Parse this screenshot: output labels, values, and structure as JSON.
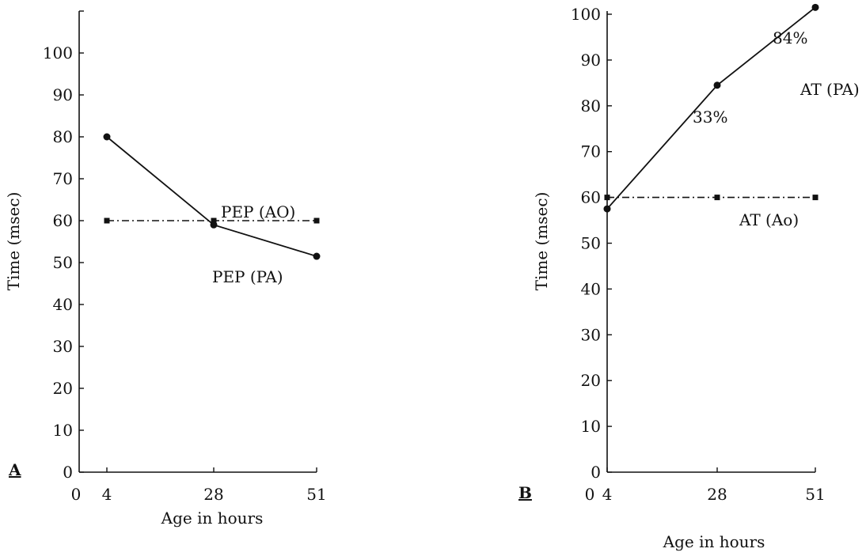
{
  "chart_data": [
    {
      "type": "line",
      "panel_label": "A",
      "xlabel": "Age in hours",
      "ylabel": "Time (msec)",
      "xlim": [
        0,
        51
      ],
      "ylim": [
        0,
        110
      ],
      "xticks": [
        0,
        4,
        28,
        51
      ],
      "yticks": [
        0,
        10,
        20,
        30,
        40,
        50,
        60,
        70,
        80,
        90,
        100
      ],
      "grid": false,
      "series": [
        {
          "name": "PEP (AO)",
          "x": [
            4,
            28,
            51
          ],
          "values": [
            60,
            60,
            60
          ],
          "style": "dash-dot",
          "marker": "square"
        },
        {
          "name": "PEP (PA)",
          "x": [
            4,
            28,
            51
          ],
          "values": [
            80,
            59,
            51.5
          ],
          "style": "solid",
          "marker": "circle"
        }
      ],
      "annotations": []
    },
    {
      "type": "line",
      "panel_label": "B",
      "xlabel": "Age in hours",
      "ylabel": "Time (msec)",
      "xlim": [
        0,
        51
      ],
      "ylim": [
        0,
        100
      ],
      "xticks": [
        0,
        4,
        28,
        51
      ],
      "yticks": [
        0,
        10,
        20,
        30,
        40,
        50,
        60,
        70,
        80,
        90,
        100
      ],
      "grid": false,
      "series": [
        {
          "name": "AT (Ao)",
          "x": [
            4,
            28,
            51
          ],
          "values": [
            60,
            60,
            60
          ],
          "style": "dash-dot",
          "marker": "square"
        },
        {
          "name": "AT (PA)",
          "x": [
            4,
            28,
            51
          ],
          "values": [
            57.5,
            84.5,
            101.5
          ],
          "style": "solid",
          "marker": "circle"
        }
      ],
      "annotations": [
        {
          "text": "33%",
          "x": 28,
          "y": 84.5
        },
        {
          "text": "84%",
          "x": 51,
          "y": 101.5
        }
      ]
    }
  ]
}
